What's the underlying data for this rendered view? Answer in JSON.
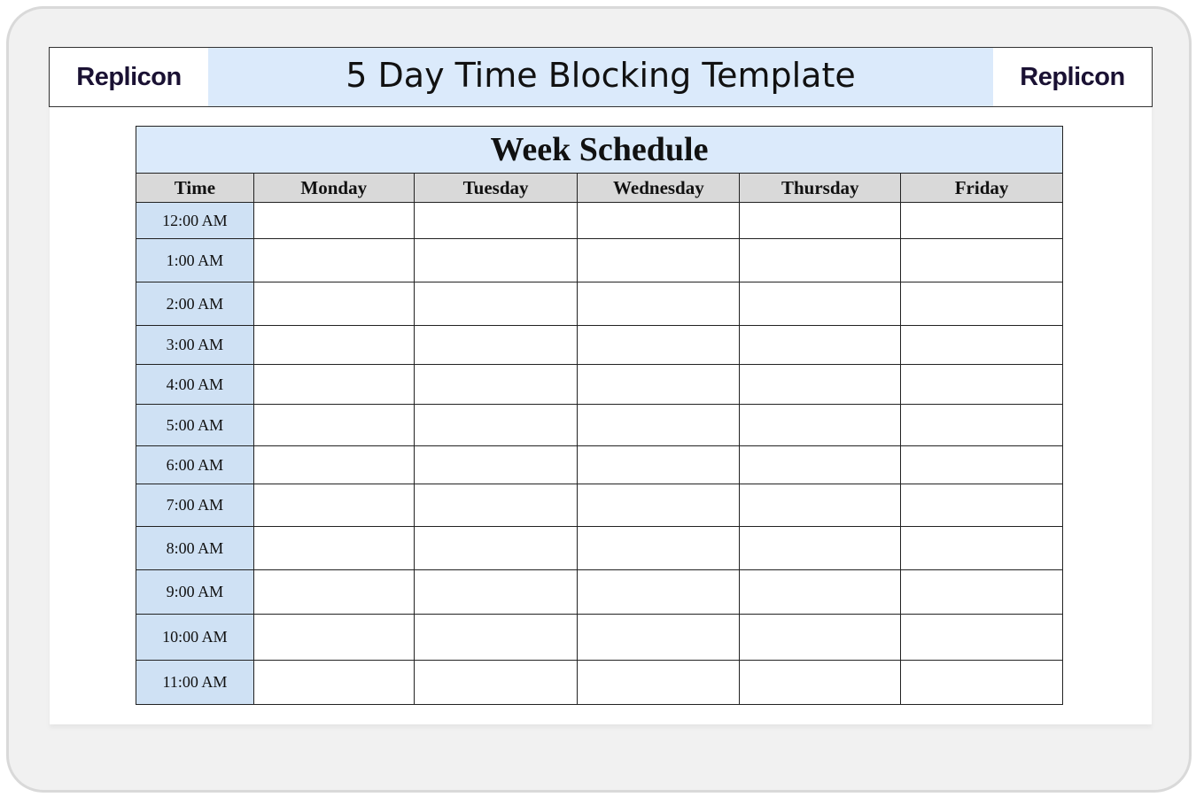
{
  "banner": {
    "logo_left": "Replicon",
    "title": "5 Day Time Blocking Template",
    "logo_right": "Replicon"
  },
  "schedule": {
    "title": "Week Schedule",
    "headers": [
      "Time",
      "Monday",
      "Tuesday",
      "Wednesday",
      "Thursday",
      "Friday"
    ],
    "times": [
      "12:00 AM",
      "1:00 AM",
      "2:00 AM",
      "3:00 AM",
      "4:00 AM",
      "5:00 AM",
      "6:00 AM",
      "7:00 AM",
      "8:00 AM",
      "9:00 AM",
      "10:00 AM",
      "11:00 AM"
    ]
  },
  "colors": {
    "banner_bg": "#dbeafb",
    "time_col_bg": "#cfe1f4",
    "header_bg": "#d9d9d9",
    "logo_text": "#1a1133"
  }
}
